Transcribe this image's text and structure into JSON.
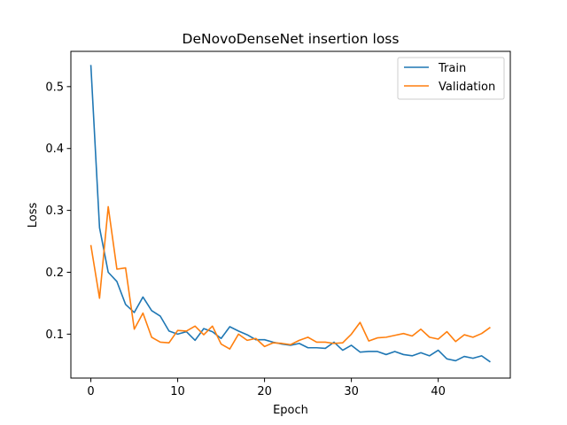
{
  "chart_data": {
    "type": "line",
    "title": "DeNovoDenseNet insertion loss",
    "xlabel": "Epoch",
    "ylabel": "Loss",
    "xlim": [
      -2.3,
      48.3
    ],
    "ylim": [
      0.029,
      0.557
    ],
    "xticks": [
      0,
      10,
      20,
      30,
      40
    ],
    "yticks": [
      0.1,
      0.2,
      0.3,
      0.4,
      0.5
    ],
    "legend_position": "top-right",
    "grid": false,
    "series": [
      {
        "name": "Train",
        "color": "#1f77b4",
        "x": [
          0,
          1,
          2,
          3,
          4,
          5,
          6,
          7,
          8,
          9,
          10,
          11,
          12,
          13,
          14,
          15,
          16,
          17,
          18,
          19,
          20,
          21,
          22,
          23,
          24,
          25,
          26,
          27,
          28,
          29,
          30,
          31,
          32,
          33,
          34,
          35,
          36,
          37,
          38,
          39,
          40,
          41,
          42,
          43,
          44,
          45,
          46
        ],
        "values": [
          0.535,
          0.272,
          0.2,
          0.185,
          0.148,
          0.135,
          0.16,
          0.138,
          0.129,
          0.105,
          0.1,
          0.104,
          0.09,
          0.109,
          0.104,
          0.093,
          0.112,
          0.105,
          0.099,
          0.091,
          0.091,
          0.087,
          0.084,
          0.082,
          0.085,
          0.078,
          0.078,
          0.077,
          0.087,
          0.074,
          0.082,
          0.071,
          0.072,
          0.072,
          0.067,
          0.072,
          0.067,
          0.065,
          0.07,
          0.065,
          0.074,
          0.06,
          0.057,
          0.064,
          0.061,
          0.065,
          0.055
        ]
      },
      {
        "name": "Validation",
        "color": "#ff7f0e",
        "x": [
          0,
          1,
          2,
          3,
          4,
          5,
          6,
          7,
          8,
          9,
          10,
          11,
          12,
          13,
          14,
          15,
          16,
          17,
          18,
          19,
          20,
          21,
          22,
          23,
          24,
          25,
          26,
          27,
          28,
          29,
          30,
          31,
          32,
          33,
          34,
          35,
          36,
          37,
          38,
          39,
          40,
          41,
          42,
          43,
          44,
          45,
          46
        ],
        "values": [
          0.244,
          0.158,
          0.306,
          0.205,
          0.207,
          0.108,
          0.134,
          0.095,
          0.087,
          0.086,
          0.106,
          0.105,
          0.113,
          0.099,
          0.113,
          0.084,
          0.076,
          0.1,
          0.09,
          0.093,
          0.08,
          0.086,
          0.085,
          0.083,
          0.09,
          0.095,
          0.087,
          0.087,
          0.085,
          0.086,
          0.1,
          0.119,
          0.089,
          0.094,
          0.095,
          0.098,
          0.101,
          0.097,
          0.108,
          0.095,
          0.092,
          0.104,
          0.088,
          0.099,
          0.095,
          0.101,
          0.111
        ]
      }
    ]
  }
}
